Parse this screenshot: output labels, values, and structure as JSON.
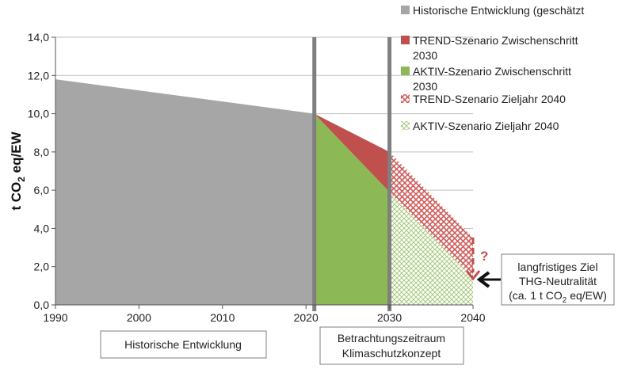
{
  "chart_data": {
    "type": "area",
    "ylabel": {
      "main": "t CO",
      "sub": "2",
      "rest": " eq/EW"
    },
    "ylim": [
      0,
      14
    ],
    "yticks": [
      "0,0",
      "2,0",
      "4,0",
      "6,0",
      "8,0",
      "10,0",
      "12,0",
      "14,0"
    ],
    "xlim": [
      1990,
      2040
    ],
    "xticks": [
      "1990",
      "2000",
      "2010",
      "2020",
      "2030",
      "2040"
    ],
    "grid": true,
    "legend_position": "top-right",
    "series": [
      {
        "name": "Historische Entwicklung (geschätzt",
        "color": "#a6a6a6",
        "pattern": "solid",
        "x": [
          1990,
          2021
        ],
        "y": [
          11.8,
          10.0
        ]
      },
      {
        "name": "TREND-Szenario Zwischenschritt 2030",
        "color": "#c0504d",
        "pattern": "solid",
        "x": [
          2021,
          2030
        ],
        "y": [
          10.0,
          8.0
        ]
      },
      {
        "name": "AKTIV-Szenario Zwischenschritt 2030",
        "color": "#8db856",
        "pattern": "solid",
        "x": [
          2021,
          2030
        ],
        "y": [
          10.0,
          5.9
        ]
      },
      {
        "name": "TREND-Szenario Zieljahr 2040",
        "color": "#e6a4a4",
        "pattern": "hatched",
        "x": [
          2030,
          2040
        ],
        "y": [
          8.0,
          3.5
        ]
      },
      {
        "name": "AKTIV-Szenario Zieljahr 2040",
        "color": "#bcd89c",
        "pattern": "hatched",
        "x": [
          2030,
          2040
        ],
        "y": [
          5.9,
          1.4
        ]
      }
    ],
    "dividers": [
      2021,
      2030
    ],
    "annotations": {
      "question_mark": "?",
      "target_box": {
        "line1": "langfristiges Ziel",
        "line2": "THG-Neutralität",
        "line3_pre": "(ca. 1 t CO",
        "line3_sub": "2",
        "line3_post": " eq/EW)"
      },
      "period_boxes": [
        {
          "line1": "Historische Entwicklung"
        },
        {
          "line1": "Betrachtungszeitraum",
          "line2": "Klimaschutzkonzept"
        }
      ]
    }
  },
  "colors": {
    "hist": "#a6a6a6",
    "trend": "#c0504d",
    "aktiv": "#8db856",
    "divider": "#7f7f7f",
    "grid": "#bfbfbf",
    "arrow": "#111111"
  }
}
